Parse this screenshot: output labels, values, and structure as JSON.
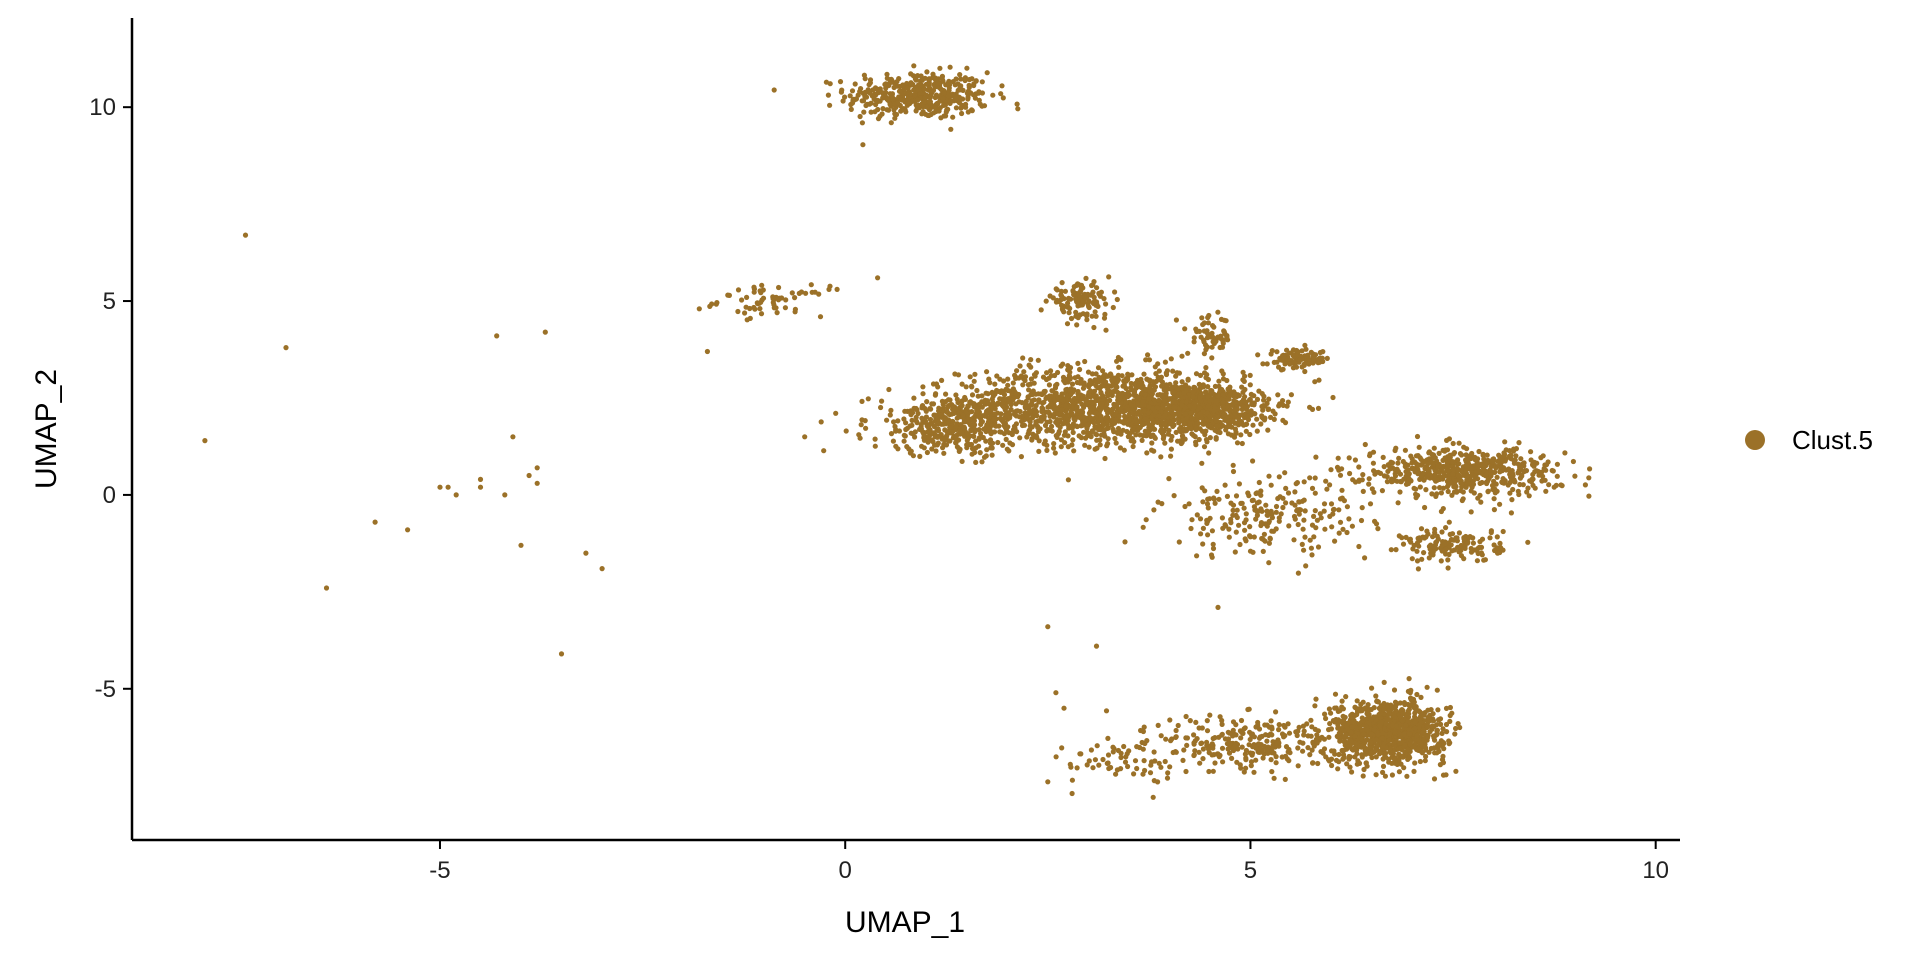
{
  "chart_data": {
    "type": "scatter",
    "title": "",
    "xlabel": "UMAP_1",
    "ylabel": "UMAP_2",
    "xlim": [
      -8.8,
      10.3
    ],
    "ylim": [
      -8.9,
      12.3
    ],
    "x_ticks": [
      -5,
      0,
      5,
      10
    ],
    "x_tick_labels": [
      "-5",
      "0",
      "5",
      "10"
    ],
    "y_ticks": [
      -5,
      0,
      5,
      10
    ],
    "y_tick_labels": [
      "-5",
      "0",
      "5",
      "10"
    ],
    "grid": false,
    "legend_position": "right",
    "series": [
      {
        "name": "Clust.5",
        "color": "#9B7128",
        "clusters": [
          {
            "center": [
              0.9,
              10.3
            ],
            "spread": [
              0.8,
              0.55
            ],
            "count": 420
          },
          {
            "center": [
              -0.9,
              5.0
            ],
            "spread": [
              0.6,
              0.35
            ],
            "count": 60
          },
          {
            "center": [
              3.2,
              2.3
            ],
            "spread": [
              1.6,
              0.9
            ],
            "count": 1300
          },
          {
            "center": [
              4.4,
              2.2
            ],
            "spread": [
              0.7,
              0.6
            ],
            "count": 600
          },
          {
            "center": [
              1.4,
              1.8
            ],
            "spread": [
              1.0,
              0.7
            ],
            "count": 400
          },
          {
            "center": [
              2.9,
              5.0
            ],
            "spread": [
              0.35,
              0.4
            ],
            "count": 120
          },
          {
            "center": [
              4.5,
              4.1
            ],
            "spread": [
              0.25,
              0.45
            ],
            "count": 60
          },
          {
            "center": [
              5.6,
              3.5
            ],
            "spread": [
              0.35,
              0.22
            ],
            "count": 90
          },
          {
            "center": [
              7.6,
              0.6
            ],
            "spread": [
              1.1,
              0.55
            ],
            "count": 550
          },
          {
            "center": [
              7.5,
              -1.3
            ],
            "spread": [
              0.55,
              0.4
            ],
            "count": 140
          },
          {
            "center": [
              5.2,
              -0.6
            ],
            "spread": [
              1.2,
              0.9
            ],
            "count": 220
          },
          {
            "center": [
              6.7,
              -6.1
            ],
            "spread": [
              0.65,
              0.75
            ],
            "count": 900
          },
          {
            "center": [
              5.0,
              -6.4
            ],
            "spread": [
              1.0,
              0.7
            ],
            "count": 250
          },
          {
            "center": [
              3.4,
              -6.9
            ],
            "spread": [
              0.6,
              0.5
            ],
            "count": 60
          }
        ],
        "outliers": [
          [
            -7.4,
            6.7
          ],
          [
            -6.9,
            3.8
          ],
          [
            -7.9,
            1.4
          ],
          [
            -6.4,
            -2.4
          ],
          [
            -5.8,
            -0.7
          ],
          [
            -5.4,
            -0.9
          ],
          [
            -5.0,
            0.2
          ],
          [
            -4.9,
            0.2
          ],
          [
            -4.8,
            0.0
          ],
          [
            -4.5,
            0.2
          ],
          [
            -4.5,
            0.4
          ],
          [
            -4.3,
            4.1
          ],
          [
            -4.2,
            0.0
          ],
          [
            -4.1,
            1.5
          ],
          [
            -4.0,
            -1.3
          ],
          [
            -3.9,
            0.5
          ],
          [
            -3.8,
            0.7
          ],
          [
            -3.8,
            0.3
          ],
          [
            -3.7,
            4.2
          ],
          [
            -3.5,
            -4.1
          ],
          [
            -3.2,
            -1.5
          ],
          [
            -3.0,
            -1.9
          ],
          [
            -0.5,
            1.5
          ],
          [
            0.4,
            5.6
          ],
          [
            -0.2,
            5.3
          ],
          [
            -0.1,
            5.3
          ],
          [
            -1.7,
            3.7
          ],
          [
            -1.8,
            4.8
          ],
          [
            2.5,
            -3.4
          ],
          [
            3.1,
            -3.9
          ],
          [
            2.5,
            -7.4
          ],
          [
            2.8,
            -7.7
          ],
          [
            2.6,
            -5.1
          ],
          [
            2.7,
            -5.5
          ],
          [
            3.8,
            -7.8
          ],
          [
            4.6,
            -2.9
          ]
        ]
      }
    ]
  }
}
